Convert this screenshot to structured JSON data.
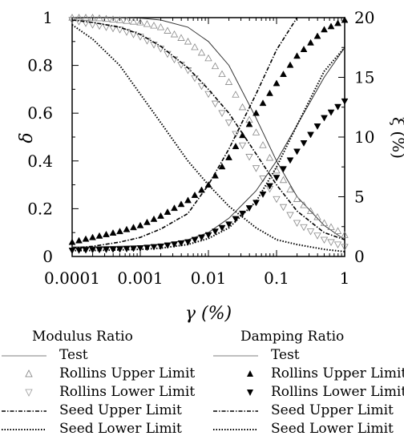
{
  "chart_data": {
    "type": "line",
    "x_scale": "log",
    "x": [
      0.0001,
      0.0002,
      0.0005,
      0.001,
      0.002,
      0.005,
      0.01,
      0.02,
      0.05,
      0.1,
      0.2,
      0.5,
      1
    ],
    "xlim": [
      0.0001,
      1
    ],
    "ylim_left": [
      0,
      1
    ],
    "ylim_right": [
      0,
      20
    ],
    "xlabel": "γ (%)",
    "ylabel_left": "δ",
    "ylabel_right": "ξ (%)",
    "x_ticks": [
      "0.0001",
      "0.001",
      "0.01",
      "0.1",
      "1"
    ],
    "y_ticks_left": [
      "0",
      "0.2",
      "0.4",
      "0.6",
      "0.8",
      "1"
    ],
    "y_ticks_right": [
      "0",
      "5",
      "10",
      "15",
      "20"
    ],
    "series": [
      {
        "name": "Test",
        "group": "modulus",
        "axis": "left",
        "style": "thin-solid",
        "values": [
          1.0,
          1.0,
          1.0,
          0.998,
          0.99,
          0.96,
          0.9,
          0.8,
          0.58,
          0.4,
          0.25,
          0.13,
          0.07
        ]
      },
      {
        "name": "Rollins Upper Limit",
        "group": "modulus",
        "axis": "left",
        "style": "open-triangle-up",
        "values": [
          1.0,
          1.0,
          0.99,
          0.98,
          0.96,
          0.9,
          0.83,
          0.73,
          0.52,
          0.36,
          0.24,
          0.14,
          0.09
        ]
      },
      {
        "name": "Rollins Lower Limit",
        "group": "modulus",
        "axis": "left",
        "style": "open-triangle-down",
        "values": [
          0.99,
          0.97,
          0.95,
          0.92,
          0.87,
          0.78,
          0.68,
          0.56,
          0.37,
          0.24,
          0.14,
          0.07,
          0.04
        ]
      },
      {
        "name": "Seed Upper Limit",
        "group": "modulus",
        "axis": "left",
        "style": "dash-dot",
        "values": [
          0.99,
          0.98,
          0.96,
          0.93,
          0.88,
          0.79,
          0.7,
          0.6,
          0.43,
          0.3,
          0.19,
          0.1,
          0.07
        ]
      },
      {
        "name": "Seed Lower Limit",
        "group": "modulus",
        "axis": "left",
        "style": "dotted",
        "values": [
          0.97,
          0.91,
          0.8,
          0.68,
          0.56,
          0.4,
          0.3,
          0.21,
          0.12,
          0.07,
          0.05,
          0.03,
          0.02
        ]
      },
      {
        "name": "Test",
        "group": "damping",
        "axis": "right",
        "style": "thin-solid",
        "values": [
          0.8,
          0.8,
          0.85,
          0.9,
          1.0,
          1.4,
          2.0,
          3.2,
          5.5,
          8.0,
          11.0,
          15.0,
          17.5
        ]
      },
      {
        "name": "Rollins Upper Limit",
        "group": "damping",
        "axis": "right",
        "style": "filled-triangle-up",
        "values": [
          1.2,
          1.6,
          2.1,
          2.6,
          3.4,
          4.7,
          6.0,
          8.3,
          12.0,
          14.5,
          16.8,
          19.0,
          19.8
        ]
      },
      {
        "name": "Rollins Lower Limit",
        "group": "damping",
        "axis": "right",
        "style": "filled-triangle-down",
        "values": [
          0.5,
          0.55,
          0.6,
          0.7,
          0.85,
          1.2,
          1.8,
          2.7,
          4.5,
          6.6,
          8.8,
          11.6,
          13.0
        ]
      },
      {
        "name": "Seed Upper Limit",
        "group": "damping",
        "axis": "right",
        "style": "dash-dot",
        "values": [
          0.7,
          0.85,
          1.2,
          1.6,
          2.3,
          3.6,
          6.0,
          9.0,
          13.6,
          17.3,
          20.0,
          null,
          null
        ]
      },
      {
        "name": "Seed Lower Limit",
        "group": "damping",
        "axis": "right",
        "style": "dotted",
        "values": [
          0.5,
          0.5,
          0.55,
          0.6,
          0.7,
          1.0,
          1.5,
          2.4,
          4.6,
          7.5,
          11.0,
          15.5,
          17.5
        ]
      }
    ]
  },
  "legend": {
    "modulus_title": "Modulus Ratio",
    "damping_title": "Damping Ratio",
    "modulus_entries": [
      "Test",
      "Rollins Upper Limit",
      "Rollins Lower Limit",
      "Seed Upper Limit",
      "Seed Lower Limit"
    ],
    "damping_entries": [
      "Test",
      "Rollins Upper Limit",
      "Rollins Lower Limit",
      "Seed Upper Limit",
      "Seed Lower Limit"
    ]
  }
}
